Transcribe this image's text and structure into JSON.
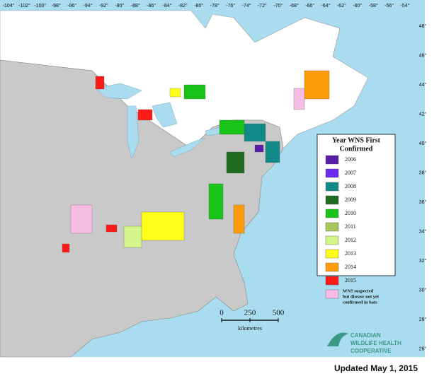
{
  "map": {
    "longitude_labels": [
      "-104°",
      "-102°",
      "-100°",
      "-98°",
      "-96°",
      "-94°",
      "-92°",
      "-90°",
      "-88°",
      "-86°",
      "-84°",
      "-82°",
      "-80°",
      "-78°",
      "-76°",
      "-74°",
      "-72°",
      "-70°",
      "-68°",
      "-66°",
      "-64°",
      "-62°",
      "-60°",
      "-58°",
      "-56°",
      "-54°"
    ],
    "latitude_labels": [
      "48°",
      "46°",
      "44°",
      "42°",
      "40°",
      "38°",
      "36°",
      "34°",
      "32°",
      "30°",
      "28°",
      "26°"
    ],
    "legend": {
      "title": [
        "Year WNS First",
        "Confirmed"
      ],
      "entries": [
        {
          "label": "2006",
          "color": "#5a1ea6"
        },
        {
          "label": "2007",
          "color": "#6b2bf0"
        },
        {
          "label": "2008",
          "color": "#138a8a"
        },
        {
          "label": "2009",
          "color": "#1f6b1f"
        },
        {
          "label": "2010",
          "color": "#18c418"
        },
        {
          "label": "2011",
          "color": "#a6c85a"
        },
        {
          "label": "2012",
          "color": "#d4f58a"
        },
        {
          "label": "2013",
          "color": "#ffff1a"
        },
        {
          "label": "2014",
          "color": "#ff9c0a"
        },
        {
          "label": "2015",
          "color": "#ff1a1a"
        }
      ],
      "note": {
        "lines": [
          "WNS suspected",
          "but disease not yet",
          "confirmed in bats"
        ],
        "color": "#f7bde6"
      }
    },
    "scale_bar": {
      "ticks": [
        "0",
        "250",
        "500"
      ],
      "unit": "kilometres"
    },
    "logo": [
      "CANADIAN",
      "WILDLIFE HEALTH",
      "COOPERATIVE"
    ],
    "footer": "Updated May 1, 2015"
  }
}
